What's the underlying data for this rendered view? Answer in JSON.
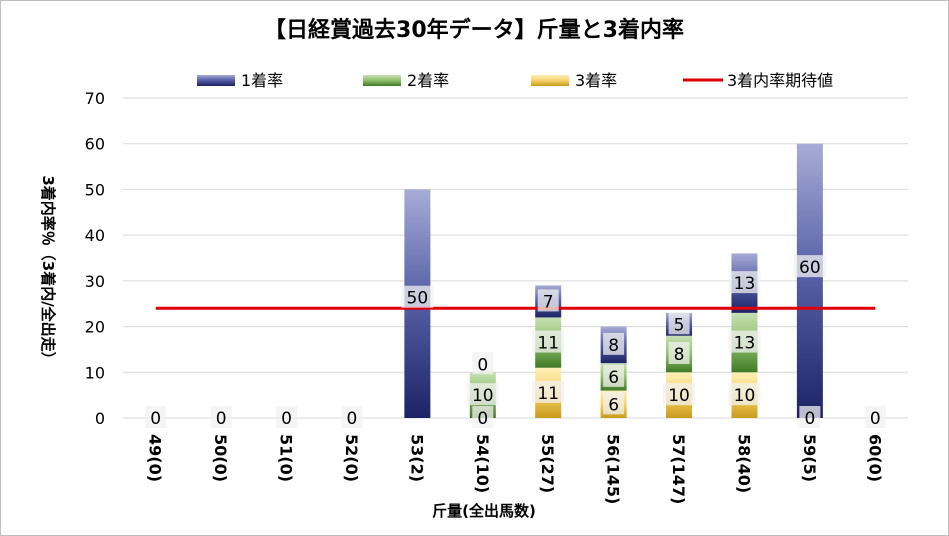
{
  "chart_data": {
    "type": "bar",
    "title": "【日経賞過去30年データ】斤量と3着内率",
    "xlabel": "斤量(全出馬数)",
    "ylabel": "3着内率％（3着内/全出走）",
    "ylim": [
      0,
      70
    ],
    "yticks": [
      "0",
      "10",
      "20",
      "30",
      "40",
      "50",
      "60",
      "70"
    ],
    "grid": true,
    "legend_position": "top",
    "categories": [
      "49(0)",
      "50(0)",
      "51(0)",
      "52(0)",
      "53(2)",
      "54(10)",
      "55(27)",
      "56(145)",
      "57(147)",
      "58(40)",
      "59(5)",
      "60(0)"
    ],
    "series": [
      {
        "name": "1着率",
        "color": "#2e3a87",
        "values": [
          0,
          0,
          0,
          0,
          50,
          0,
          7,
          8,
          5,
          13,
          60,
          0
        ]
      },
      {
        "name": "2着率",
        "color": "#4a8a2e",
        "values": [
          0,
          0,
          0,
          0,
          0,
          10,
          11,
          6,
          8,
          13,
          0,
          0
        ]
      },
      {
        "name": "3着率",
        "color": "#d9a521",
        "values": [
          0,
          0,
          0,
          0,
          0,
          0,
          11,
          6,
          10,
          10,
          0,
          0
        ]
      }
    ],
    "reference_line": {
      "name": "3着内率期待値",
      "color": "#e00000",
      "value": 24
    },
    "data_labels": [
      {
        "category": "49(0)",
        "labels": [
          "0"
        ]
      },
      {
        "category": "50(0)",
        "labels": [
          "0"
        ]
      },
      {
        "category": "51(0)",
        "labels": [
          "0"
        ]
      },
      {
        "category": "52(0)",
        "labels": [
          "0"
        ]
      },
      {
        "category": "53(2)",
        "labels": [
          "50"
        ]
      },
      {
        "category": "54(10)",
        "labels": [
          "0",
          "10",
          "0"
        ]
      },
      {
        "category": "55(27)",
        "labels": [
          "11",
          "11",
          "7"
        ]
      },
      {
        "category": "56(145)",
        "labels": [
          "6",
          "6",
          "8"
        ]
      },
      {
        "category": "57(147)",
        "labels": [
          "10",
          "8",
          "5"
        ]
      },
      {
        "category": "58(40)",
        "labels": [
          "10",
          "13",
          "13"
        ]
      },
      {
        "category": "59(5)",
        "labels": [
          "0",
          "60"
        ]
      },
      {
        "category": "60(0)",
        "labels": [
          "0"
        ]
      }
    ]
  }
}
